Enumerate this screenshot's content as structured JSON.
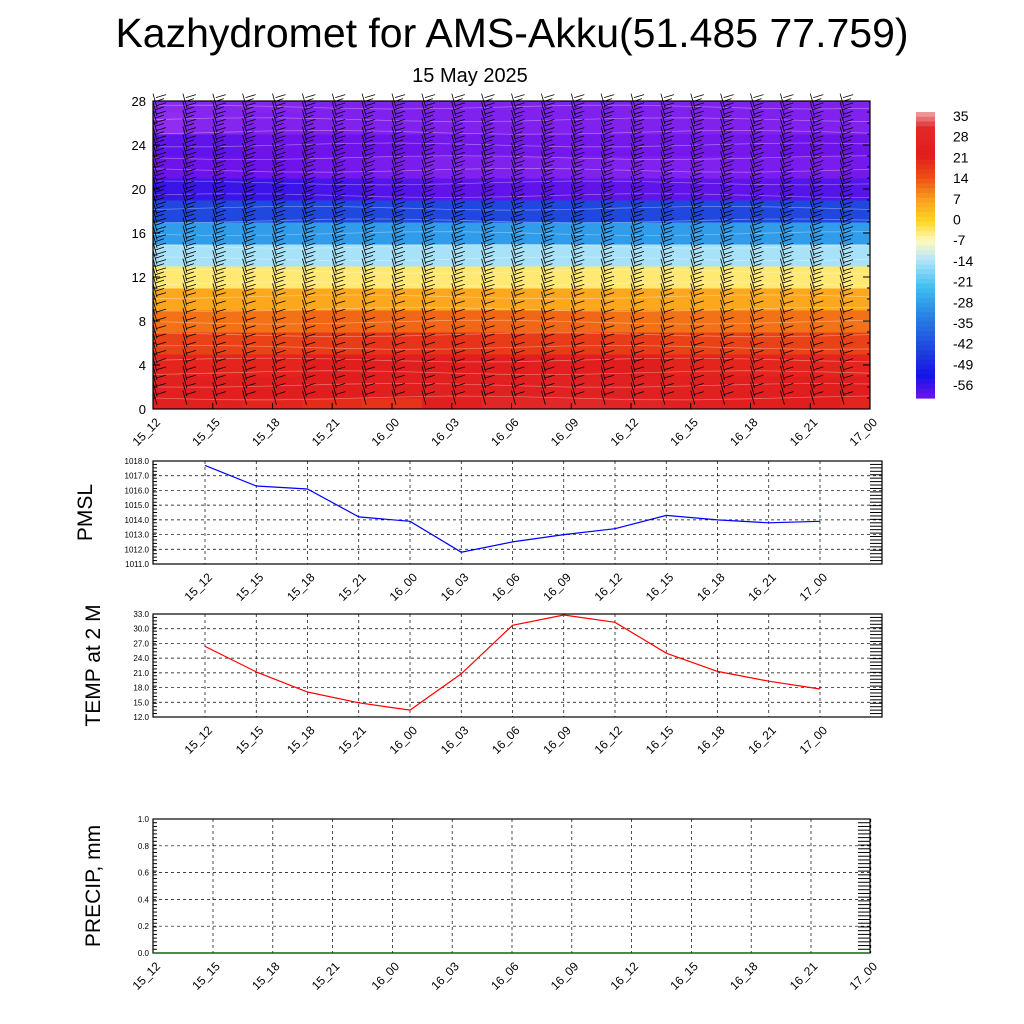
{
  "title": "Kazhydromet for AMS-Akku(51.485 77.759)",
  "subtitle": "15 May 2025",
  "time_labels": [
    "15_12",
    "15_15",
    "15_18",
    "15_21",
    "16_00",
    "16_03",
    "16_06",
    "16_09",
    "16_12",
    "16_15",
    "16_18",
    "16_21",
    "17_00"
  ],
  "colorbar": {
    "labels": [
      "35",
      "28",
      "21",
      "14",
      "7",
      "0",
      "-7",
      "-14",
      "-21",
      "-28",
      "-35",
      "-42",
      "-49",
      "-56"
    ]
  },
  "chart_data": [
    {
      "type": "heatmap",
      "title": "",
      "ylabel": "",
      "ylim": [
        0,
        28
      ],
      "yticks": [
        0,
        4,
        8,
        12,
        16,
        20,
        24,
        28
      ],
      "x": [
        "15_12",
        "15_15",
        "15_18",
        "15_21",
        "16_00",
        "16_03",
        "16_06",
        "16_09",
        "16_12",
        "16_15",
        "16_18",
        "16_21",
        "17_00"
      ],
      "levels": [
        0,
        2,
        4,
        6,
        8,
        10,
        12,
        14,
        16,
        18,
        20,
        22,
        24,
        26,
        28
      ],
      "values": [
        [
          24,
          23,
          20,
          19,
          18,
          22,
          28,
          30,
          27,
          24,
          22,
          21,
          20
        ],
        [
          23,
          22,
          21,
          21,
          22,
          23,
          24,
          25,
          24,
          23,
          22,
          21,
          21
        ],
        [
          20,
          20,
          20,
          21,
          22,
          22,
          22,
          22,
          21,
          20,
          20,
          20,
          20
        ],
        [
          16,
          16,
          16,
          17,
          18,
          18,
          17,
          17,
          17,
          16,
          16,
          16,
          16
        ],
        [
          11,
          11,
          11,
          12,
          12,
          12,
          12,
          12,
          11,
          11,
          11,
          11,
          11
        ],
        [
          6,
          6,
          6,
          6,
          6,
          6,
          6,
          6,
          6,
          6,
          6,
          6,
          6
        ],
        [
          -3,
          -3,
          -3,
          -3,
          -3,
          -3,
          -3,
          -3,
          -3,
          -3,
          -3,
          -3,
          -3
        ],
        [
          -13,
          -13,
          -13,
          -13,
          -13,
          -13,
          -13,
          -13,
          -13,
          -13,
          -13,
          -13,
          -13
        ],
        [
          -26,
          -26,
          -26,
          -26,
          -26,
          -26,
          -26,
          -26,
          -26,
          -26,
          -26,
          -26,
          -26
        ],
        [
          -40,
          -40,
          -40,
          -40,
          -40,
          -40,
          -40,
          -40,
          -40,
          -40,
          -40,
          -40,
          -40
        ],
        [
          -52,
          -52,
          -52,
          -53,
          -54,
          -55,
          -55,
          -55,
          -55,
          -55,
          -55,
          -54,
          -54
        ],
        [
          -56,
          -56,
          -56,
          -57,
          -58,
          -59,
          -59,
          -59,
          -59,
          -59,
          -58,
          -58,
          -57
        ],
        [
          -55,
          -55,
          -56,
          -56,
          -56,
          -57,
          -57,
          -57,
          -57,
          -57,
          -57,
          -56,
          -56
        ],
        [
          -62,
          -60,
          -59,
          -59,
          -59,
          -59,
          -59,
          -59,
          -59,
          -59,
          -59,
          -59,
          -59
        ],
        [
          -61,
          -60,
          -60,
          -59,
          -59,
          -59,
          -59,
          -59,
          -59,
          -59,
          -59,
          -59,
          -59
        ]
      ]
    },
    {
      "type": "line",
      "ylabel": "PMSL",
      "ylim": [
        1011.0,
        1018.0
      ],
      "yticks": [
        1011.0,
        1012.0,
        1013.0,
        1014.0,
        1015.0,
        1016.0,
        1017.0,
        1018.0
      ],
      "x": [
        "15_12",
        "15_15",
        "15_18",
        "15_21",
        "16_00",
        "16_03",
        "16_06",
        "16_09",
        "16_12",
        "16_15",
        "16_18",
        "16_21",
        "17_00"
      ],
      "series": [
        {
          "color": "#0000ff",
          "values": [
            1017.7,
            1016.3,
            1016.1,
            1014.2,
            1013.9,
            1011.8,
            1012.5,
            1013.0,
            1013.4,
            1014.3,
            1014.0,
            1013.8,
            1013.9
          ]
        }
      ]
    },
    {
      "type": "line",
      "ylabel": "TEMP at 2 M",
      "ylim": [
        12.0,
        33.0
      ],
      "yticks": [
        12.0,
        15.0,
        18.0,
        21.0,
        24.0,
        27.0,
        30.0,
        33.0
      ],
      "x": [
        "15_12",
        "15_15",
        "15_18",
        "15_21",
        "16_00",
        "16_03",
        "16_06",
        "16_09",
        "16_12",
        "16_15",
        "16_18",
        "16_21",
        "17_00"
      ],
      "series": [
        {
          "color": "#ff0000",
          "values": [
            26.4,
            21.2,
            17.1,
            14.9,
            13.4,
            20.8,
            30.7,
            32.8,
            31.3,
            25.0,
            21.3,
            19.3,
            17.7
          ]
        }
      ]
    },
    {
      "type": "line",
      "ylabel": "PRECIP, mm",
      "ylim": [
        0.0,
        1.0
      ],
      "yticks": [
        0.0,
        0.2,
        0.4,
        0.6,
        0.8,
        1.0
      ],
      "x": [
        "15_12",
        "15_15",
        "15_18",
        "15_21",
        "16_00",
        "16_03",
        "16_06",
        "16_09",
        "16_12",
        "16_15",
        "16_18",
        "16_21",
        "17_00"
      ],
      "series": [
        {
          "color": "#006400",
          "values": [
            0,
            0,
            0,
            0,
            0,
            0,
            0,
            0,
            0,
            0,
            0,
            0,
            0
          ]
        }
      ]
    }
  ]
}
